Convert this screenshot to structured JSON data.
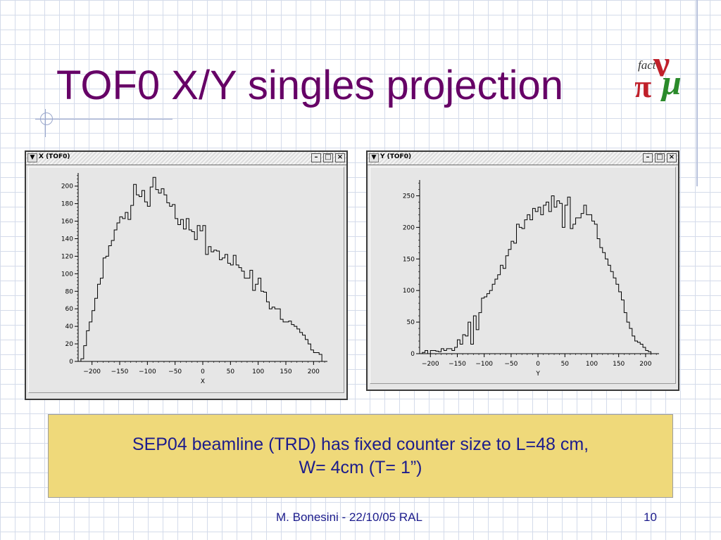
{
  "slide": {
    "title": "TOF0 X/Y singles projection",
    "note_line1": "SEP04 beamline (TRD) has fixed counter size to L=48 cm,",
    "note_line2": "W= 4cm (T= 1”)",
    "footer_text": "M. Bonesini - 22/10/05 RAL",
    "page_number": "10",
    "logo_text": {
      "fact": "fact",
      "nu": "ν",
      "pi": "π",
      "mu": "μ"
    }
  },
  "windows": [
    {
      "title": "X (TOF0)",
      "menu_icon": "chevron-down-icon",
      "buttons": [
        "minimize-icon",
        "maximize-icon",
        "close-icon"
      ]
    },
    {
      "title": "Y (TOF0)",
      "menu_icon": "chevron-down-icon",
      "buttons": [
        "minimize-icon",
        "maximize-icon",
        "close-icon"
      ]
    }
  ],
  "colors": {
    "title": "#660066",
    "text": "#1c1c8c",
    "note_bg": "#efd97a",
    "grid": "#d4dbea"
  },
  "chart_data": [
    {
      "type": "line",
      "style": "step-histogram",
      "title": "",
      "xlabel": "X",
      "ylabel": "",
      "xlim": [
        -225,
        225
      ],
      "ylim": [
        0,
        215
      ],
      "x_ticks": [
        -200,
        -150,
        -100,
        -50,
        0,
        50,
        100,
        150,
        200
      ],
      "y_ticks": [
        0,
        20,
        40,
        60,
        80,
        100,
        120,
        140,
        160,
        180,
        200
      ],
      "x": [
        -220,
        -215,
        -210,
        -205,
        -200,
        -195,
        -190,
        -185,
        -180,
        -175,
        -170,
        -165,
        -160,
        -155,
        -150,
        -145,
        -140,
        -135,
        -130,
        -125,
        -120,
        -115,
        -110,
        -105,
        -100,
        -95,
        -90,
        -85,
        -80,
        -75,
        -70,
        -65,
        -60,
        -55,
        -50,
        -45,
        -40,
        -35,
        -30,
        -25,
        -20,
        -15,
        -10,
        -5,
        0,
        5,
        10,
        15,
        20,
        25,
        30,
        35,
        40,
        45,
        50,
        55,
        60,
        65,
        70,
        75,
        80,
        85,
        90,
        95,
        100,
        105,
        110,
        115,
        120,
        125,
        130,
        135,
        140,
        145,
        150,
        155,
        160,
        165,
        170,
        175,
        180,
        185,
        190,
        195,
        200,
        205,
        210,
        215
      ],
      "values": [
        3,
        18,
        35,
        45,
        58,
        72,
        88,
        95,
        118,
        120,
        132,
        138,
        150,
        158,
        165,
        163,
        170,
        162,
        178,
        202,
        190,
        188,
        195,
        182,
        177,
        199,
        210,
        196,
        192,
        197,
        190,
        181,
        177,
        179,
        163,
        156,
        162,
        151,
        163,
        150,
        148,
        139,
        155,
        149,
        155,
        122,
        131,
        125,
        127,
        126,
        116,
        118,
        122,
        112,
        110,
        121,
        110,
        107,
        103,
        95,
        95,
        104,
        81,
        88,
        95,
        80,
        79,
        68,
        60,
        62,
        60,
        60,
        48,
        45,
        45,
        46,
        42,
        40,
        37,
        33,
        30,
        25,
        20,
        13,
        10,
        10,
        8,
        0
      ]
    },
    {
      "type": "line",
      "style": "step-histogram",
      "title": "",
      "xlabel": "Y",
      "ylabel": "",
      "xlim": [
        -220,
        225
      ],
      "ylim": [
        0,
        275
      ],
      "x_ticks": [
        -200,
        -150,
        -100,
        -50,
        0,
        50,
        100,
        150,
        200
      ],
      "y_ticks": [
        0,
        50,
        100,
        150,
        200,
        250
      ],
      "x": [
        -215,
        -210,
        -205,
        -200,
        -195,
        -190,
        -185,
        -180,
        -175,
        -170,
        -165,
        -160,
        -155,
        -150,
        -145,
        -140,
        -135,
        -130,
        -125,
        -120,
        -115,
        -110,
        -105,
        -100,
        -95,
        -90,
        -85,
        -80,
        -75,
        -70,
        -65,
        -60,
        -55,
        -50,
        -45,
        -40,
        -35,
        -30,
        -25,
        -20,
        -15,
        -10,
        -5,
        0,
        5,
        10,
        15,
        20,
        25,
        30,
        35,
        40,
        45,
        50,
        55,
        60,
        65,
        70,
        75,
        80,
        85,
        90,
        95,
        100,
        105,
        110,
        115,
        120,
        125,
        130,
        135,
        140,
        145,
        150,
        155,
        160,
        165,
        170,
        175,
        180,
        185,
        190,
        195,
        200,
        205,
        210
      ],
      "values": [
        2,
        5,
        0,
        5,
        5,
        4,
        3,
        8,
        5,
        8,
        8,
        5,
        10,
        22,
        15,
        30,
        28,
        50,
        15,
        60,
        38,
        65,
        88,
        90,
        95,
        100,
        110,
        118,
        125,
        140,
        135,
        155,
        165,
        178,
        175,
        205,
        200,
        198,
        212,
        220,
        212,
        230,
        225,
        232,
        220,
        235,
        240,
        225,
        250,
        232,
        242,
        238,
        200,
        235,
        248,
        198,
        205,
        215,
        215,
        222,
        235,
        220,
        220,
        210,
        205,
        182,
        168,
        160,
        150,
        140,
        130,
        120,
        110,
        98,
        85,
        65,
        50,
        40,
        28,
        20,
        18,
        15,
        10,
        5,
        3,
        0
      ]
    }
  ]
}
